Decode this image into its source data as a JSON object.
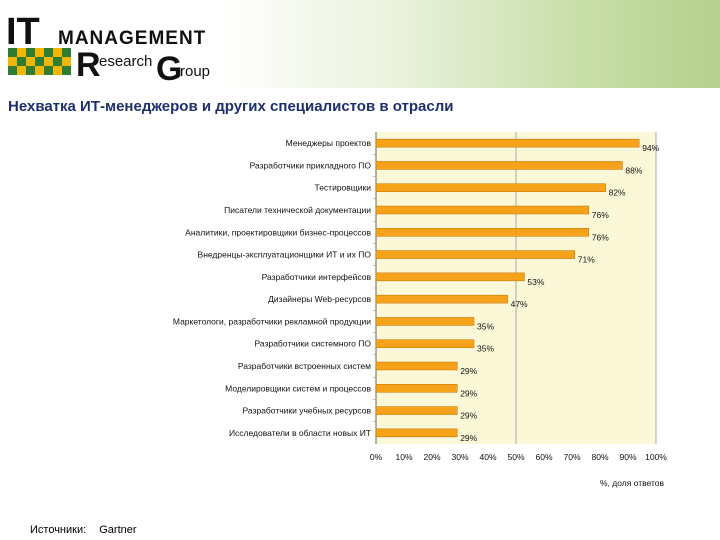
{
  "logo": {
    "line1_big": "IT",
    "line1_rest": "MANAGEMENT",
    "line2_big1": "R",
    "line2_rest1": "esearch",
    "line2_big2": "G",
    "line2_rest2": "roup"
  },
  "title": "Нехватка ИТ-менеджеров и других специалистов в отрасли",
  "source": {
    "label": "Источники:",
    "value": "Gartner"
  },
  "colors": {
    "bar": "#f7a21b",
    "bar_stroke": "#c07000",
    "plot_bg": "#fbf8d8",
    "title": "#1e2f6e"
  },
  "chart_data": {
    "type": "bar",
    "orientation": "horizontal",
    "categories": [
      "Менеджеры проектов",
      "Разработчики прикладного ПО",
      "Тестировщики",
      "Писатели технической документации",
      "Аналитики, проектировщики бизнес-процессов",
      "Внедренцы-эксплуатационщики ИТ и их ПО",
      "Разработчики интерфейсов",
      "Дизайнеры Web-ресурсов",
      "Маркетологи, разработчики рекламной продукции",
      "Разработчики системного ПО",
      "Разработчики встроенных систем",
      "Моделировщики систем и процессов",
      "Разработчики учебных ресурсов",
      "Исследователи в области новых ИТ"
    ],
    "values": [
      94,
      88,
      82,
      76,
      76,
      71,
      53,
      47,
      35,
      35,
      29,
      29,
      29,
      29
    ],
    "value_labels": [
      "94%",
      "88%",
      "82%",
      "76%",
      "76%",
      "71%",
      "53%",
      "47%",
      "35%",
      "35%",
      "29%",
      "29%",
      "29%",
      "29%"
    ],
    "xlim": [
      0,
      100
    ],
    "xticks": [
      "0%",
      "10%",
      "20%",
      "30%",
      "40%",
      "50%",
      "60%",
      "70%",
      "80%",
      "90%",
      "100%"
    ],
    "xlabel": "%,  доля ответов",
    "grid": "vertical at 50% and 100%"
  }
}
